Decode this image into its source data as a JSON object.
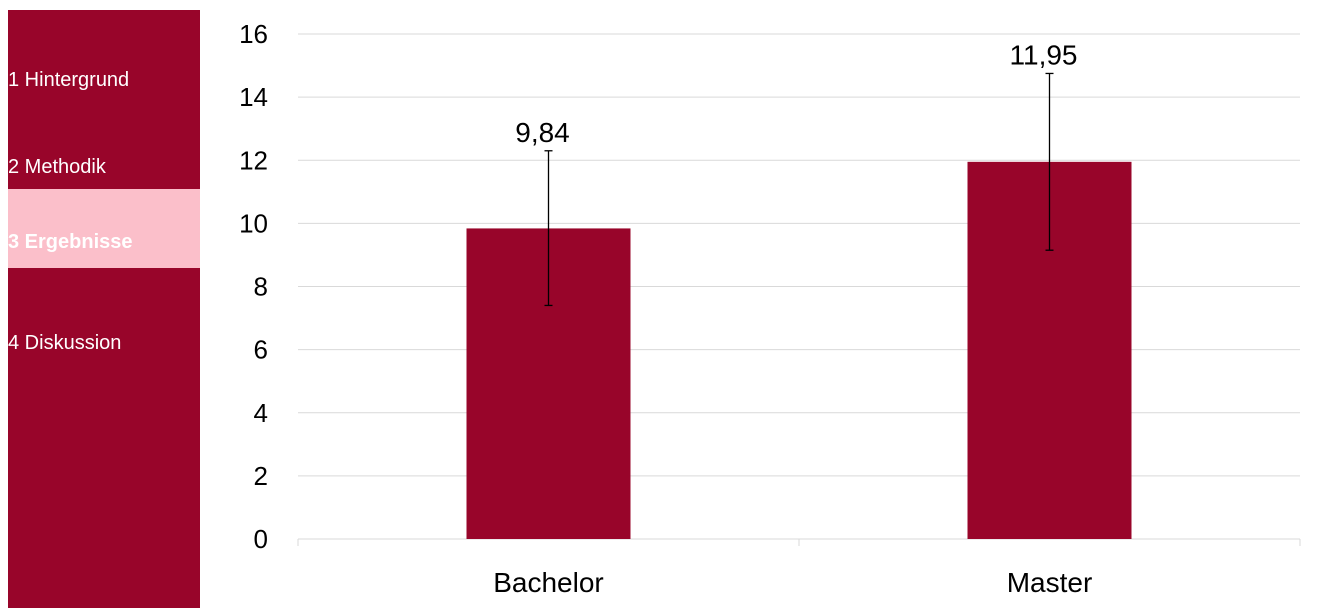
{
  "sidebar": {
    "items": [
      {
        "label": "1 Hintergrund",
        "active": false
      },
      {
        "label": "2 Methodik",
        "active": false
      },
      {
        "label": "3 Ergebnisse",
        "active": true
      },
      {
        "label": "4 Diskussion",
        "active": false
      }
    ]
  },
  "colors": {
    "accent": "#98052a",
    "active_item": "#fbbfca",
    "grid": "#d9d9d9"
  },
  "chart_data": {
    "type": "bar",
    "categories": [
      "Bachelor",
      "Master"
    ],
    "values": [
      9.84,
      11.95
    ],
    "value_labels": [
      "9,84",
      "11,95"
    ],
    "error_bars": [
      {
        "low": 7.4,
        "high": 12.3
      },
      {
        "low": 9.15,
        "high": 14.75
      }
    ],
    "ylim": [
      0,
      16
    ],
    "yticks": [
      "0",
      "2",
      "4",
      "6",
      "8",
      "10",
      "12",
      "14",
      "16"
    ],
    "grid": true,
    "title": "",
    "xlabel": "",
    "ylabel": ""
  }
}
